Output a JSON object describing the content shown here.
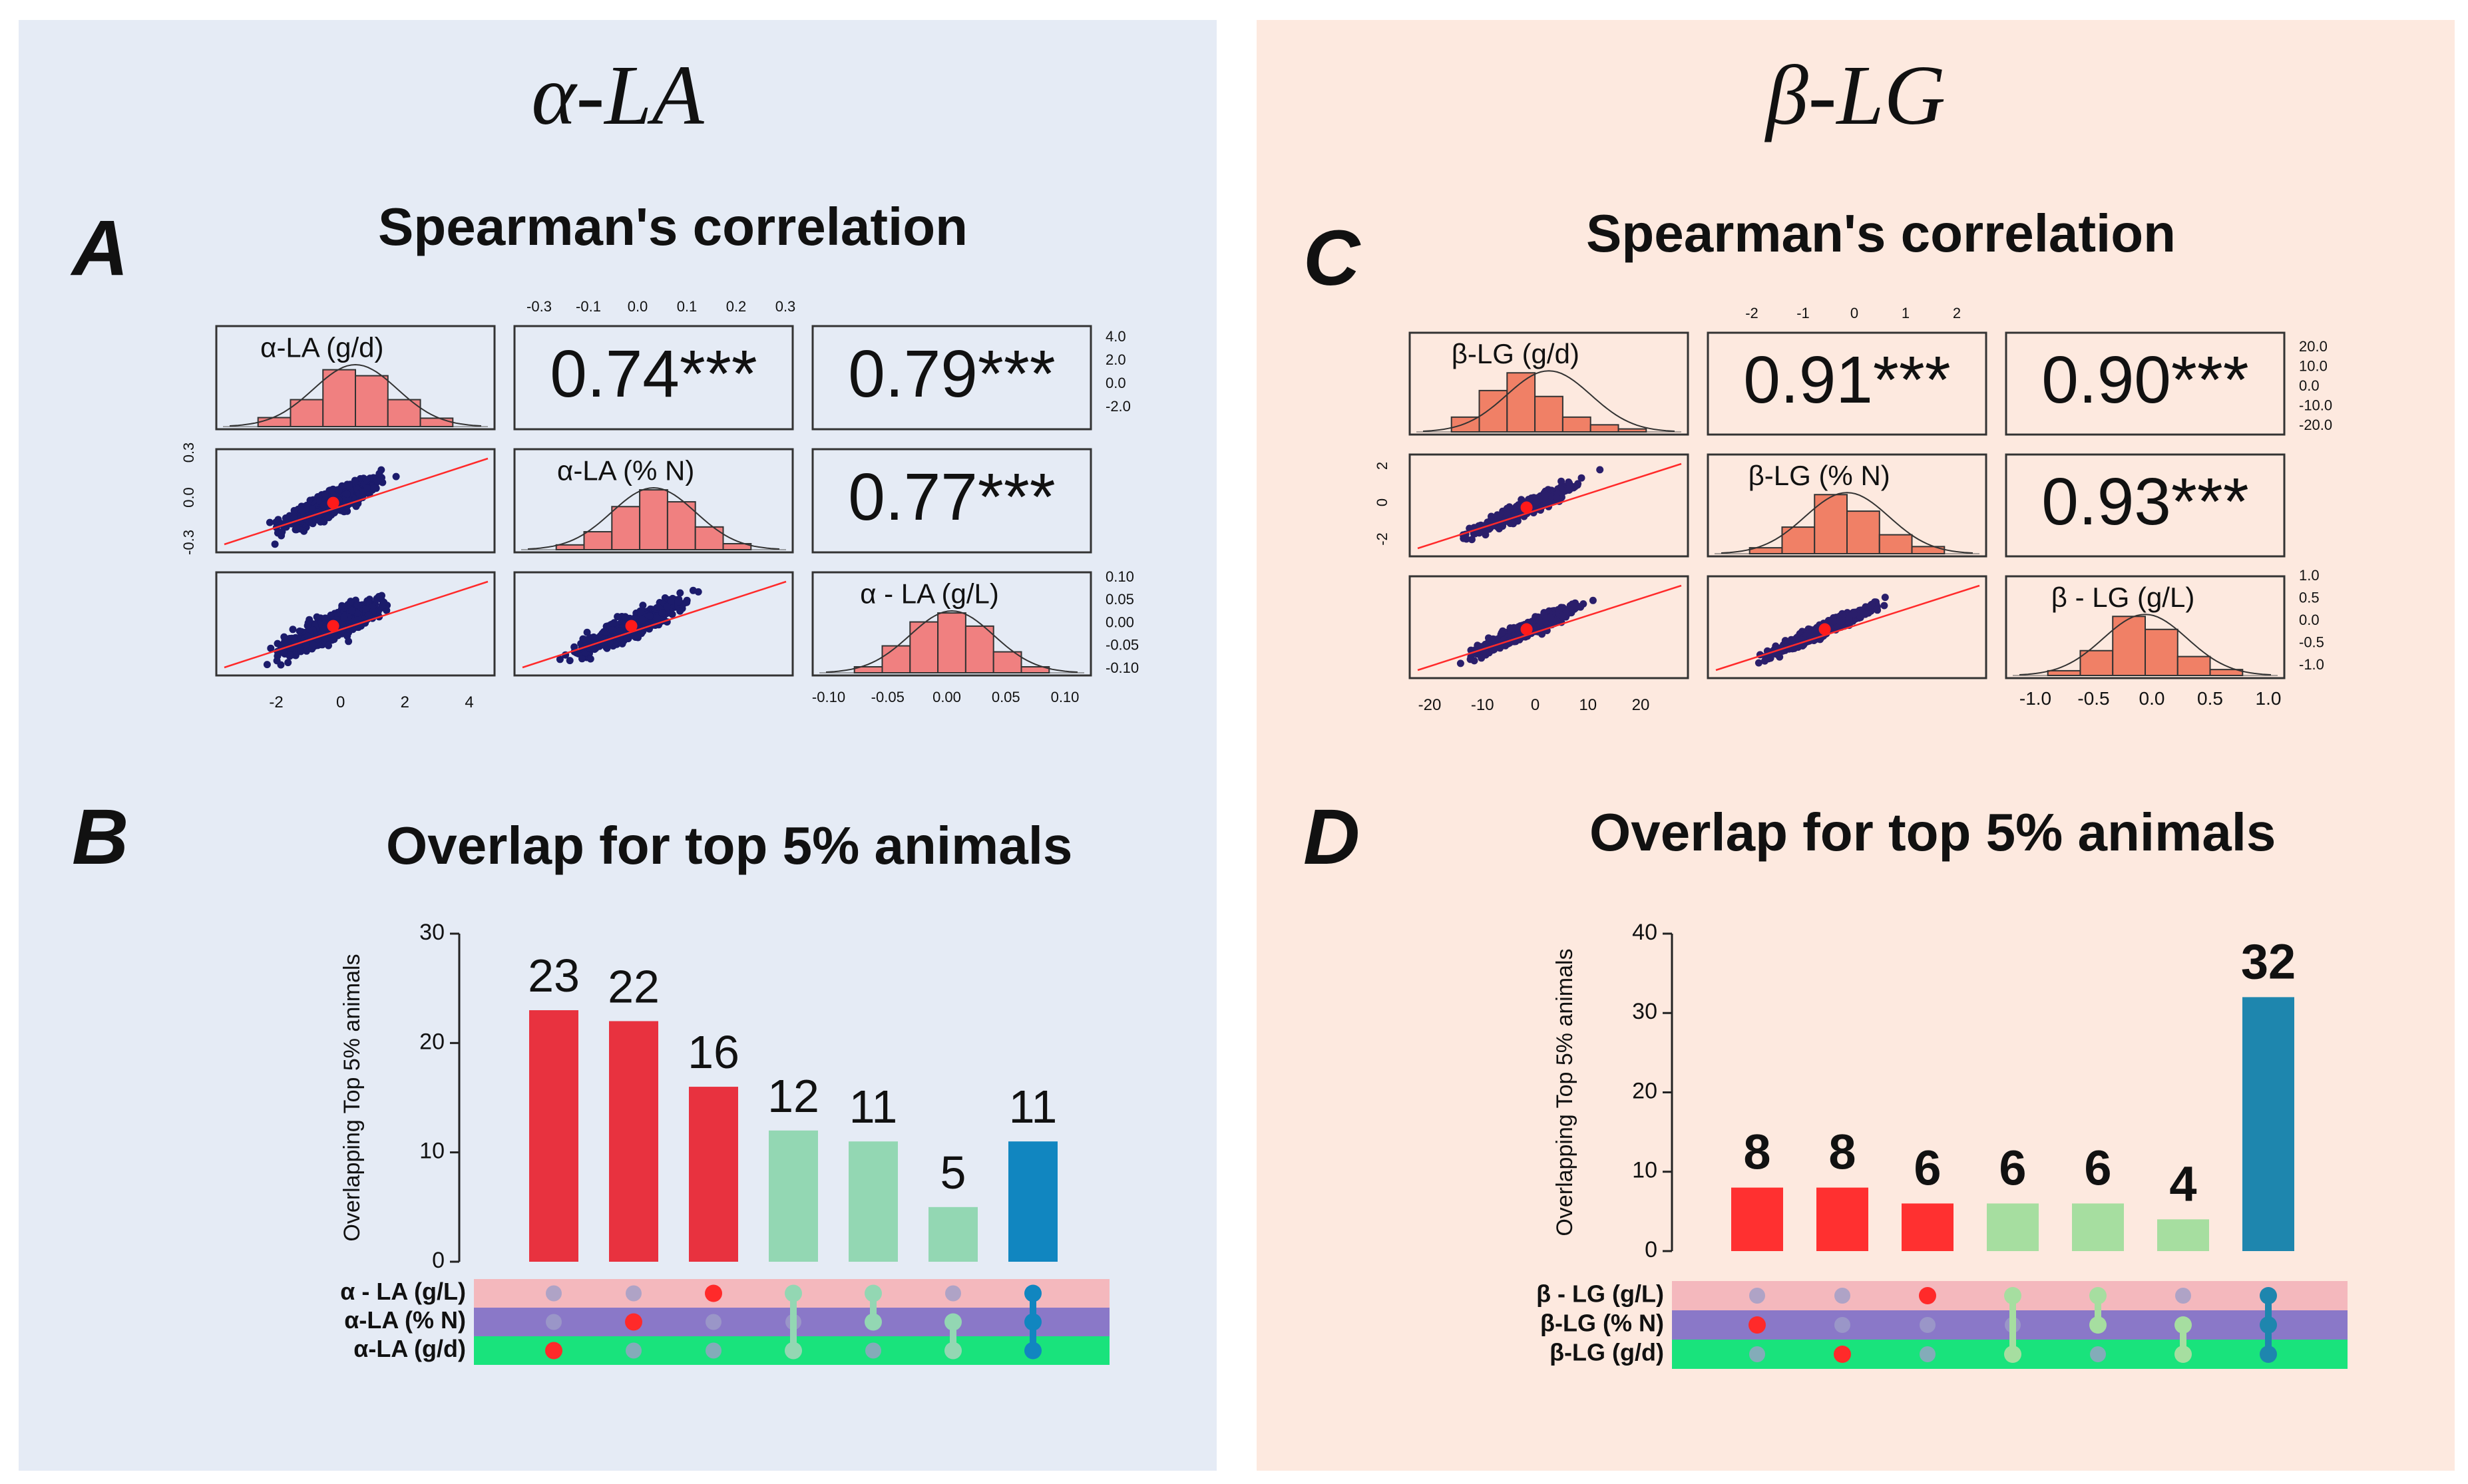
{
  "left": {
    "title": "α-LA",
    "section_a_letter": "A",
    "section_a_title": "Spearman's correlation",
    "section_b_letter": "B",
    "section_b_title": "Overlap for top 5% animals",
    "colors": {
      "bar_red": "#e8323f",
      "bar_green": "#93d7b3",
      "bar_blue": "#1186c0",
      "hist": "#f08080",
      "dot": "#1b1b6b"
    }
  },
  "right": {
    "title": "β-LG",
    "section_c_letter": "C",
    "section_c_title": "Spearman's correlation",
    "section_d_letter": "D",
    "section_d_title": "Overlap for top 5% animals",
    "colors": {
      "bar_red": "#ff3030",
      "bar_green": "#a6dea0",
      "bar_blue": "#1e86ae",
      "hist": "#f08066",
      "dot": "#2a1e6b"
    }
  },
  "chart_data": [
    {
      "type": "correlation_matrix",
      "panel": "A",
      "title": "Spearman's correlation",
      "variables": [
        "α-LA (g/d)",
        "α-LA (% N)",
        "α - LA (g/L)"
      ],
      "correlations": {
        "r12": "0.74***",
        "r13": "0.79***",
        "r23": "0.77***"
      },
      "top_ticks": [
        "-0.3",
        "-0.1",
        "0.0",
        "0.1",
        "0.2",
        "0.3"
      ],
      "right_ticks_row1": [
        "4.0",
        "2.0",
        "0.0",
        "-2.0"
      ],
      "left_ticks_row2": [
        "0.3",
        "0.0",
        "-0.3"
      ],
      "right_ticks_row3": [
        "0.10",
        "0.05",
        "0.00",
        "-0.05",
        "-0.10"
      ],
      "bottom_ticks_col1": [
        "-2",
        "0",
        "2",
        "4"
      ],
      "bottom_ticks_col3": [
        "-0.10",
        "-0.05",
        "0.00",
        "0.05",
        "0.10"
      ]
    },
    {
      "type": "bar",
      "panel": "B",
      "title": "Overlap for top 5% animals",
      "ylabel": "Overlapping Top 5% animals",
      "ylim": [
        0,
        30
      ],
      "yticks": [
        "0",
        "10",
        "20",
        "30"
      ],
      "values": [
        23,
        22,
        16,
        12,
        11,
        5,
        11
      ],
      "value_labels": [
        "23",
        "22",
        "16",
        "12",
        "11",
        "5",
        "11"
      ],
      "bar_kinds": [
        "red",
        "red",
        "red",
        "green",
        "green",
        "green",
        "blue"
      ],
      "set_names": [
        "α - LA (g/L)",
        "α-LA (% N)",
        "α-LA (g/d)"
      ],
      "matrix": [
        {
          "sets": [
            2
          ],
          "single": true
        },
        {
          "sets": [
            1
          ],
          "single": true
        },
        {
          "sets": [
            0
          ],
          "single": true
        },
        {
          "sets": [
            0,
            2
          ],
          "single": false
        },
        {
          "sets": [
            0,
            1
          ],
          "single": false
        },
        {
          "sets": [
            1,
            2
          ],
          "single": false
        },
        {
          "sets": [
            0,
            1,
            2
          ],
          "single": false,
          "all": true
        }
      ]
    },
    {
      "type": "correlation_matrix",
      "panel": "C",
      "title": "Spearman's correlation",
      "variables": [
        "β-LG (g/d)",
        "β-LG (% N)",
        "β - LG (g/L)"
      ],
      "correlations": {
        "r12": "0.91***",
        "r13": "0.90***",
        "r23": "0.93***"
      },
      "top_ticks": [
        "-2",
        "-1",
        "0",
        "1",
        "2"
      ],
      "right_ticks_row1": [
        "20.0",
        "10.0",
        "0.0",
        "-10.0",
        "-20.0"
      ],
      "left_ticks_row2": [
        "2",
        "0",
        "-2"
      ],
      "right_ticks_row3": [
        "1.0",
        "0.5",
        "0.0",
        "-0.5",
        "-1.0"
      ],
      "bottom_ticks_col1": [
        "-20",
        "-10",
        "0",
        "10",
        "20"
      ],
      "bottom_ticks_col3": [
        "-1.0",
        "-0.5",
        "0.0",
        "0.5",
        "1.0"
      ]
    },
    {
      "type": "bar",
      "panel": "D",
      "title": "Overlap for top 5% animals",
      "ylabel": "Overlapping Top 5% animals",
      "ylim": [
        0,
        40
      ],
      "yticks": [
        "0",
        "10",
        "20",
        "30",
        "40"
      ],
      "values": [
        8,
        8,
        6,
        6,
        6,
        4,
        32
      ],
      "value_labels": [
        "8",
        "8",
        "6",
        "6",
        "6",
        "4",
        "32"
      ],
      "bar_kinds": [
        "red",
        "red",
        "red",
        "green",
        "green",
        "green",
        "blue"
      ],
      "set_names": [
        "β - LG (g/L)",
        "β-LG (% N)",
        "β-LG (g/d)"
      ],
      "matrix": [
        {
          "sets": [
            1
          ],
          "single": true
        },
        {
          "sets": [
            2
          ],
          "single": true
        },
        {
          "sets": [
            0
          ],
          "single": true
        },
        {
          "sets": [
            0,
            2
          ],
          "single": false
        },
        {
          "sets": [
            0,
            1
          ],
          "single": false
        },
        {
          "sets": [
            1,
            2
          ],
          "single": false
        },
        {
          "sets": [
            0,
            1,
            2
          ],
          "single": false,
          "all": true
        }
      ]
    }
  ]
}
